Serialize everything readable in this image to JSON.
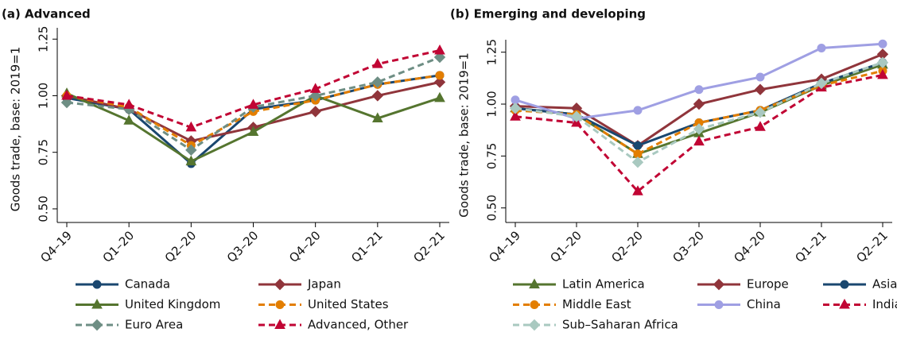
{
  "chart_data": [
    {
      "type": "line",
      "title": "(a) Advanced",
      "y_label": "Goods trade, base: 2019=1",
      "categories": [
        "Q4–19",
        "Q1–20",
        "Q2–20",
        "Q3–20",
        "Q4–20",
        "Q1–21",
        "Q2–21"
      ],
      "ylim": [
        0.44,
        1.3
      ],
      "yticks": [
        {
          "value": 0.5,
          "label": "0.50"
        },
        0.75,
        {
          "value": 1,
          "label": "1.00"
        },
        1.25
      ],
      "series": [
        {
          "name": "Canada",
          "color": "#1a476f",
          "marker": "circle",
          "dashed": false,
          "values": [
            0.99,
            0.94,
            0.7,
            0.94,
            0.98,
            1.05,
            1.09
          ]
        },
        {
          "name": "Japan",
          "color": "#90353b",
          "marker": "diamond",
          "dashed": false,
          "values": [
            1.0,
            0.94,
            0.8,
            0.86,
            0.93,
            1.0,
            1.06
          ]
        },
        {
          "name": "United Kingdom",
          "color": "#55752f",
          "marker": "triangle",
          "dashed": false,
          "values": [
            1.01,
            0.89,
            0.71,
            0.84,
            1.0,
            0.9,
            0.99
          ]
        },
        {
          "name": "United States",
          "color": "#e37e00",
          "marker": "circle",
          "dashed": true,
          "values": [
            1.0,
            0.95,
            0.78,
            0.93,
            0.98,
            1.05,
            1.09
          ]
        },
        {
          "name": "Euro Area",
          "color": "#6e8e84",
          "marker": "diamond",
          "dashed": true,
          "values": [
            0.97,
            0.94,
            0.76,
            0.95,
            1.0,
            1.06,
            1.17
          ]
        },
        {
          "name": "Advanced, Other",
          "color": "#c10534",
          "marker": "triangle",
          "dashed": true,
          "values": [
            1.0,
            0.96,
            0.86,
            0.96,
            1.03,
            1.14,
            1.2
          ]
        }
      ]
    },
    {
      "type": "line",
      "title": "(b) Emerging and developing",
      "y_label": "Goods trade, base: 2019=1",
      "categories": [
        "Q4–19",
        "Q1–20",
        "Q2–20",
        "Q3–20",
        "Q4–20",
        "Q1–21",
        "Q2–21"
      ],
      "ylim": [
        0.43,
        1.31
      ],
      "yticks": [
        {
          "value": 0.5,
          "label": "0.50"
        },
        0.75,
        {
          "value": 1,
          "label": "1.00"
        },
        1.25
      ],
      "series": [
        {
          "name": "Latin America",
          "color": "#55752f",
          "marker": "triangle",
          "dashed": false,
          "values": [
            0.98,
            0.95,
            0.76,
            0.86,
            0.96,
            1.09,
            1.19
          ]
        },
        {
          "name": "Europe",
          "color": "#90353b",
          "marker": "diamond",
          "dashed": false,
          "values": [
            0.99,
            0.98,
            0.8,
            1.0,
            1.07,
            1.12,
            1.24
          ]
        },
        {
          "name": "Asia",
          "color": "#1a476f",
          "marker": "circle",
          "dashed": false,
          "values": [
            0.98,
            0.95,
            0.8,
            0.91,
            0.97,
            1.1,
            1.2
          ]
        },
        {
          "name": "Middle East",
          "color": "#e37e00",
          "marker": "circle",
          "dashed": true,
          "values": [
            0.97,
            0.95,
            0.76,
            0.91,
            0.97,
            1.09,
            1.16
          ]
        },
        {
          "name": "China",
          "color": "#9f9fe3",
          "marker": "circle",
          "dashed": false,
          "values": [
            1.02,
            0.93,
            0.97,
            1.07,
            1.13,
            1.27,
            1.29
          ]
        },
        {
          "name": "India",
          "color": "#c10534",
          "marker": "triangle",
          "dashed": true,
          "values": [
            0.94,
            0.91,
            0.58,
            0.82,
            0.89,
            1.08,
            1.14
          ]
        },
        {
          "name": "Sub–Saharan Africa",
          "color": "#a9c9c0",
          "marker": "diamond",
          "dashed": true,
          "values": [
            0.98,
            0.94,
            0.72,
            0.88,
            0.96,
            1.1,
            1.2
          ]
        }
      ]
    }
  ]
}
